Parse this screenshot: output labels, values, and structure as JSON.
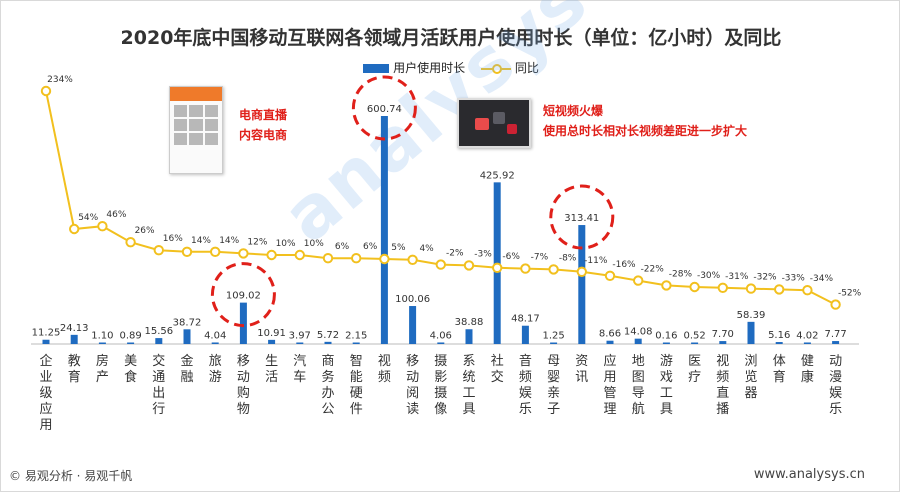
{
  "title": "2020年底中国移动互联网各领域月活跃用户使用时长（单位：亿小时）及同比",
  "legend": {
    "bar_label": "用户使用时长",
    "line_label": "同比"
  },
  "annotations": {
    "ecommerce": [
      "电商直播",
      "内容电商"
    ],
    "shortvideo": [
      "短视频火爆",
      "使用总时长相对长视频差距进一步扩大"
    ]
  },
  "watermark": "analysys 易观分析",
  "footer": {
    "left": "© 易观分析 · 易观千帆",
    "right": "www.analysys.cn"
  },
  "colors": {
    "bar": "#1f6bc0",
    "line": "#f2c01e",
    "highlight_circle": "#e0201a"
  },
  "chart_data": {
    "type": "bar",
    "categories": [
      "企业级应用",
      "教育",
      "房产",
      "美食",
      "交通出行",
      "金融",
      "旅游",
      "移动购物",
      "生活",
      "汽车",
      "商务办公",
      "智能硬件",
      "视频",
      "移动阅读",
      "摄影摄像",
      "系统工具",
      "社交",
      "音频娱乐",
      "母婴亲子",
      "资讯",
      "应用管理",
      "地图导航",
      "游戏工具",
      "医疗",
      "视频直播",
      "浏览器",
      "体育",
      "健康",
      "动漫娱乐"
    ],
    "series": [
      {
        "name": "用户使用时长",
        "type": "bar",
        "values": [
          11.25,
          24.13,
          1.1,
          0.89,
          15.56,
          38.72,
          4.04,
          109.02,
          10.91,
          3.97,
          5.72,
          2.15,
          600.74,
          100.06,
          4.06,
          38.88,
          425.92,
          48.17,
          1.25,
          313.41,
          8.66,
          14.08,
          0.16,
          0.52,
          7.7,
          58.39,
          5.16,
          4.02,
          7.77
        ],
        "labels": [
          "11.25",
          "24.13",
          "1.10",
          "0.89",
          "15.56",
          "38.72",
          "4.04",
          "109.02",
          "10.91",
          "3.97",
          "5.72",
          "2.15",
          "600.74",
          "100.06",
          "4.06",
          "38.88",
          "425.92",
          "48.17",
          "1.25",
          "313.41",
          "8.66",
          "14.08",
          "0.16",
          "0.52",
          "7.70",
          "58.39",
          "5.16",
          "4.02",
          "7.77"
        ]
      },
      {
        "name": "同比",
        "type": "line",
        "values": [
          234,
          54,
          46,
          26,
          16,
          14,
          14,
          12,
          10,
          10,
          6,
          6,
          5,
          4,
          -2,
          -3,
          -6,
          -7,
          -8,
          -11,
          -16,
          -22,
          -28,
          -30,
          -31,
          -32,
          -33,
          -34,
          -52
        ],
        "labels": [
          "234%",
          "54%",
          "46%",
          "26%",
          "16%",
          "14%",
          "14%",
          "12%",
          "10%",
          "10%",
          "6%",
          "6%",
          "5%",
          "4%",
          "-2%",
          "-3%",
          "-6%",
          "-7%",
          "-8%",
          "-11%",
          "-16%",
          "-22%",
          "-28%",
          "-30%",
          "-31%",
          "-32%",
          "-33%",
          "-34%",
          "-52%"
        ]
      }
    ],
    "highlighted_categories": [
      "移动购物",
      "视频",
      "资讯"
    ]
  }
}
